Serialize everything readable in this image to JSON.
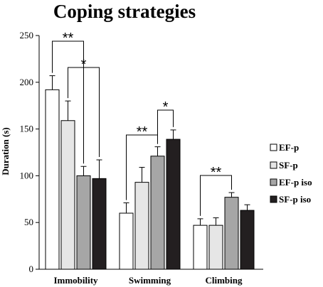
{
  "chart_data": {
    "type": "bar",
    "title": "Coping strategies",
    "ylabel": "Duration (s)",
    "xlabel": "",
    "ylim": [
      0,
      250
    ],
    "yticks": [
      0,
      50,
      100,
      150,
      200,
      250
    ],
    "categories": [
      "Immobility",
      "Swimming",
      "Climbing"
    ],
    "series": [
      {
        "name": "EF-p",
        "color": "#ffffff",
        "values": [
          192,
          60,
          47
        ],
        "errors": [
          15,
          11,
          7
        ]
      },
      {
        "name": "SF-p",
        "color": "#e6e6e6",
        "values": [
          159,
          93,
          47
        ],
        "errors": [
          21,
          16,
          8
        ]
      },
      {
        "name": "EF-p iso",
        "color": "#a6a6a6",
        "values": [
          100,
          121,
          77
        ],
        "errors": [
          10,
          10,
          5
        ]
      },
      {
        "name": "SF-p iso",
        "color": "#231f20",
        "values": [
          97,
          139,
          63
        ],
        "errors": [
          20,
          10,
          6
        ]
      }
    ],
    "significance": [
      {
        "category": 0,
        "from": 0,
        "to": 2,
        "label": "**"
      },
      {
        "category": 0,
        "from": 1,
        "to": 3,
        "label": "*"
      },
      {
        "category": 1,
        "from": 0,
        "to": 2,
        "label": "**"
      },
      {
        "category": 1,
        "from": 2,
        "to": 3,
        "label": "*"
      },
      {
        "category": 2,
        "from": 0,
        "to": 2,
        "label": "**"
      }
    ],
    "legend_position": "right",
    "grid": false
  }
}
